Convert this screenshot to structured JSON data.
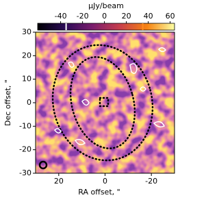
{
  "chart_data": {
    "type": "image",
    "xlabel": "RA offset, \"",
    "ylabel": "Dec offset, \"",
    "xlim": [
      30,
      -30
    ],
    "xticks": [
      20,
      0,
      -20
    ],
    "ylim": [
      -30,
      30
    ],
    "yticks": [
      -30,
      -20,
      -10,
      0,
      10,
      20,
      30
    ],
    "colorbar": {
      "label": "μJy/beam",
      "lim": [
        -61,
        64
      ],
      "ticks": [
        -40,
        -20,
        0,
        20,
        40,
        60
      ],
      "markers": [
        {
          "value": -35,
          "color": "#ffffff"
        },
        {
          "value": 35,
          "color": "#ff8c1a"
        }
      ]
    }
  }
}
